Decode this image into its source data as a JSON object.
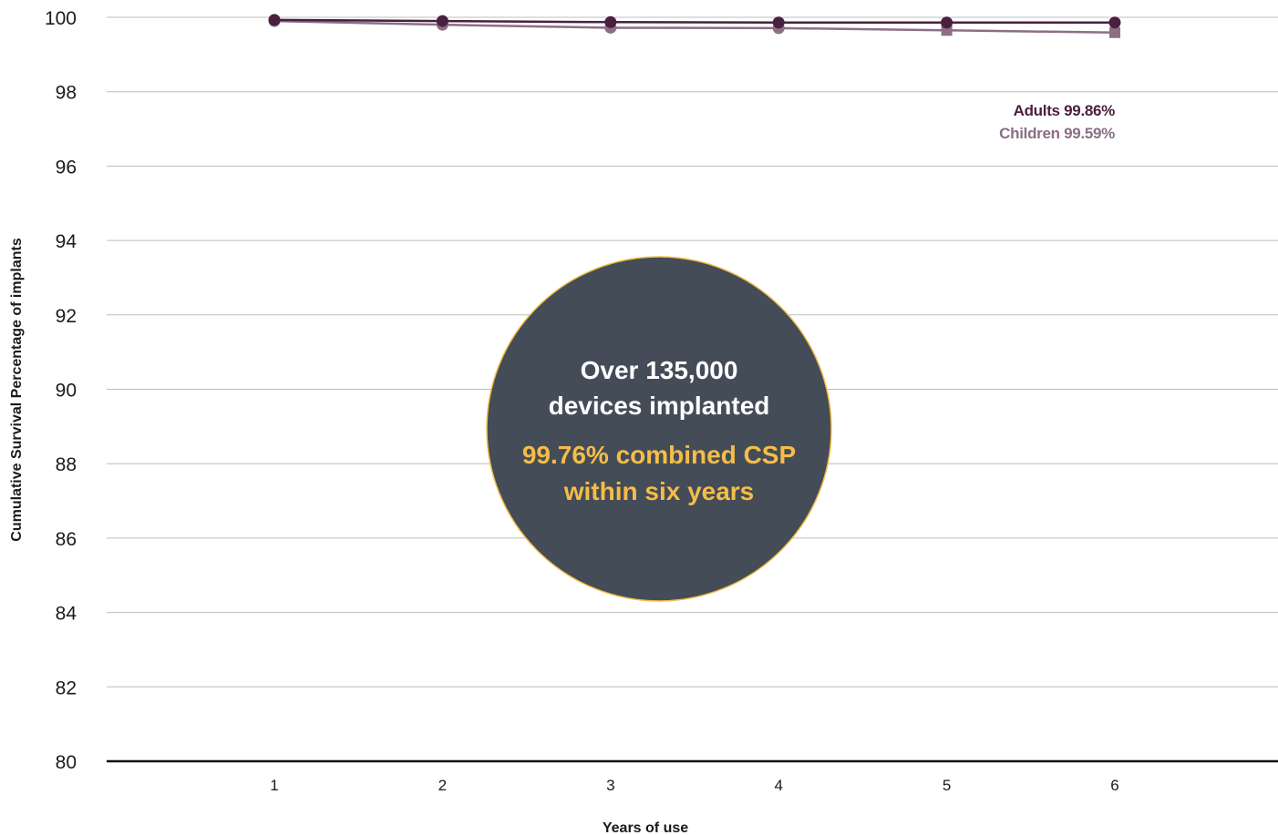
{
  "chart_data": {
    "type": "line",
    "xlabel": "Years of use",
    "ylabel": "Cumulative Survival Percentage of implants",
    "x": [
      1,
      2,
      3,
      4,
      5,
      6
    ],
    "ylim": [
      80,
      100
    ],
    "yticks": [
      80,
      82,
      84,
      86,
      88,
      90,
      92,
      94,
      96,
      98,
      100
    ],
    "grid": true,
    "series": [
      {
        "name": "Adults",
        "values": [
          99.93,
          99.9,
          99.87,
          99.86,
          99.86,
          99.86
        ],
        "color": "#4a2040",
        "end_label": "Adults 99.86%"
      },
      {
        "name": "Children",
        "values": [
          99.9,
          99.8,
          99.72,
          99.71,
          99.65,
          99.59
        ],
        "color": "#8a6f86",
        "end_label": "Children 99.59%"
      }
    ],
    "annotation": {
      "line1": "Over 135,000",
      "line2": "devices implanted",
      "line3": "99.76% combined CSP",
      "line4": "within six years",
      "fill_color": "#444c58",
      "border_color": "#f2bd45",
      "text_color": "#ffffff",
      "highlight_color": "#f5bd48"
    }
  }
}
